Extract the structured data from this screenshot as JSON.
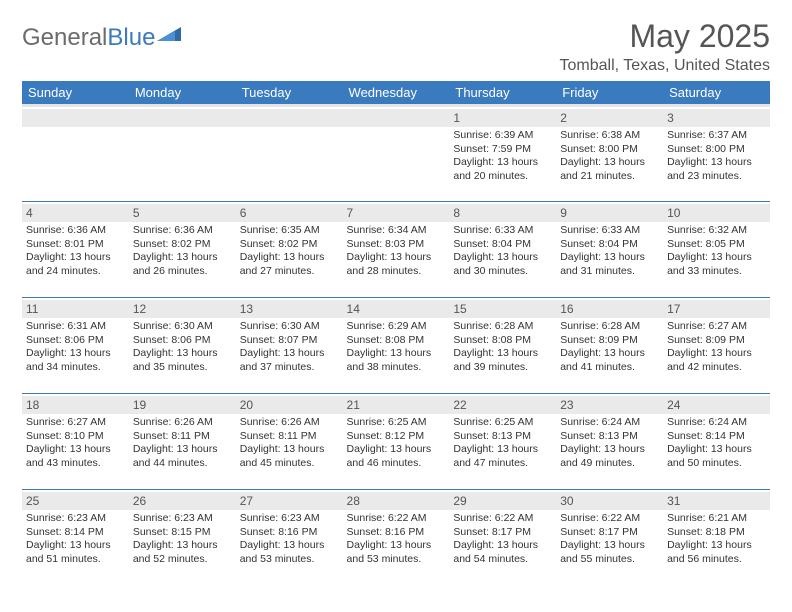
{
  "logo": {
    "part1": "General",
    "part2": "Blue"
  },
  "title": "May 2025",
  "location": "Tomball, Texas, United States",
  "header_bg": "#3a7abf",
  "header_fg": "#ffffff",
  "row_divider": "#3a7abf",
  "daynum_bg": "#eaeaea",
  "text_color": "#333333",
  "columns": [
    "Sunday",
    "Monday",
    "Tuesday",
    "Wednesday",
    "Thursday",
    "Friday",
    "Saturday"
  ],
  "weeks": [
    [
      null,
      null,
      null,
      null,
      {
        "n": "1",
        "sr": "6:39 AM",
        "ss": "7:59 PM",
        "dl": "13 hours and 20 minutes."
      },
      {
        "n": "2",
        "sr": "6:38 AM",
        "ss": "8:00 PM",
        "dl": "13 hours and 21 minutes."
      },
      {
        "n": "3",
        "sr": "6:37 AM",
        "ss": "8:00 PM",
        "dl": "13 hours and 23 minutes."
      }
    ],
    [
      {
        "n": "4",
        "sr": "6:36 AM",
        "ss": "8:01 PM",
        "dl": "13 hours and 24 minutes."
      },
      {
        "n": "5",
        "sr": "6:36 AM",
        "ss": "8:02 PM",
        "dl": "13 hours and 26 minutes."
      },
      {
        "n": "6",
        "sr": "6:35 AM",
        "ss": "8:02 PM",
        "dl": "13 hours and 27 minutes."
      },
      {
        "n": "7",
        "sr": "6:34 AM",
        "ss": "8:03 PM",
        "dl": "13 hours and 28 minutes."
      },
      {
        "n": "8",
        "sr": "6:33 AM",
        "ss": "8:04 PM",
        "dl": "13 hours and 30 minutes."
      },
      {
        "n": "9",
        "sr": "6:33 AM",
        "ss": "8:04 PM",
        "dl": "13 hours and 31 minutes."
      },
      {
        "n": "10",
        "sr": "6:32 AM",
        "ss": "8:05 PM",
        "dl": "13 hours and 33 minutes."
      }
    ],
    [
      {
        "n": "11",
        "sr": "6:31 AM",
        "ss": "8:06 PM",
        "dl": "13 hours and 34 minutes."
      },
      {
        "n": "12",
        "sr": "6:30 AM",
        "ss": "8:06 PM",
        "dl": "13 hours and 35 minutes."
      },
      {
        "n": "13",
        "sr": "6:30 AM",
        "ss": "8:07 PM",
        "dl": "13 hours and 37 minutes."
      },
      {
        "n": "14",
        "sr": "6:29 AM",
        "ss": "8:08 PM",
        "dl": "13 hours and 38 minutes."
      },
      {
        "n": "15",
        "sr": "6:28 AM",
        "ss": "8:08 PM",
        "dl": "13 hours and 39 minutes."
      },
      {
        "n": "16",
        "sr": "6:28 AM",
        "ss": "8:09 PM",
        "dl": "13 hours and 41 minutes."
      },
      {
        "n": "17",
        "sr": "6:27 AM",
        "ss": "8:09 PM",
        "dl": "13 hours and 42 minutes."
      }
    ],
    [
      {
        "n": "18",
        "sr": "6:27 AM",
        "ss": "8:10 PM",
        "dl": "13 hours and 43 minutes."
      },
      {
        "n": "19",
        "sr": "6:26 AM",
        "ss": "8:11 PM",
        "dl": "13 hours and 44 minutes."
      },
      {
        "n": "20",
        "sr": "6:26 AM",
        "ss": "8:11 PM",
        "dl": "13 hours and 45 minutes."
      },
      {
        "n": "21",
        "sr": "6:25 AM",
        "ss": "8:12 PM",
        "dl": "13 hours and 46 minutes."
      },
      {
        "n": "22",
        "sr": "6:25 AM",
        "ss": "8:13 PM",
        "dl": "13 hours and 47 minutes."
      },
      {
        "n": "23",
        "sr": "6:24 AM",
        "ss": "8:13 PM",
        "dl": "13 hours and 49 minutes."
      },
      {
        "n": "24",
        "sr": "6:24 AM",
        "ss": "8:14 PM",
        "dl": "13 hours and 50 minutes."
      }
    ],
    [
      {
        "n": "25",
        "sr": "6:23 AM",
        "ss": "8:14 PM",
        "dl": "13 hours and 51 minutes."
      },
      {
        "n": "26",
        "sr": "6:23 AM",
        "ss": "8:15 PM",
        "dl": "13 hours and 52 minutes."
      },
      {
        "n": "27",
        "sr": "6:23 AM",
        "ss": "8:16 PM",
        "dl": "13 hours and 53 minutes."
      },
      {
        "n": "28",
        "sr": "6:22 AM",
        "ss": "8:16 PM",
        "dl": "13 hours and 53 minutes."
      },
      {
        "n": "29",
        "sr": "6:22 AM",
        "ss": "8:17 PM",
        "dl": "13 hours and 54 minutes."
      },
      {
        "n": "30",
        "sr": "6:22 AM",
        "ss": "8:17 PM",
        "dl": "13 hours and 55 minutes."
      },
      {
        "n": "31",
        "sr": "6:21 AM",
        "ss": "8:18 PM",
        "dl": "13 hours and 56 minutes."
      }
    ]
  ],
  "labels": {
    "sunrise": "Sunrise:",
    "sunset": "Sunset:",
    "daylight": "Daylight:"
  }
}
